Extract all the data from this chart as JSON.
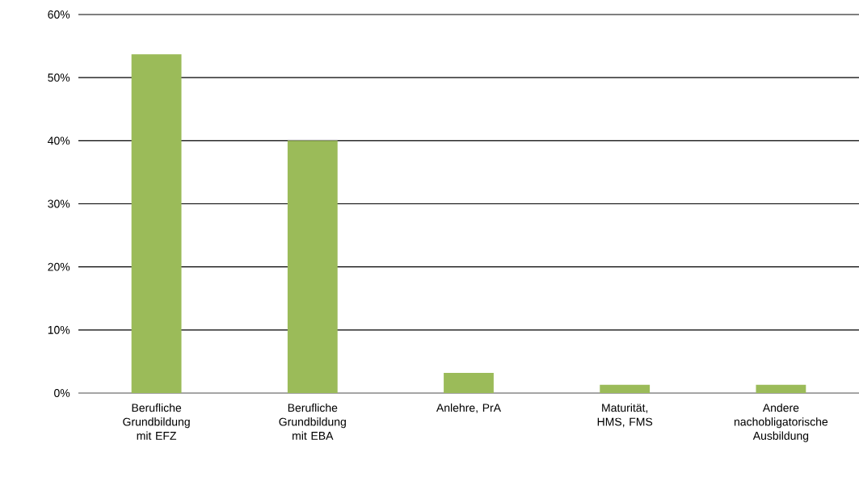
{
  "chart_data": {
    "type": "bar",
    "categories": [
      "Berufliche Grundbildung mit EFZ",
      "Berufliche Grundbildung mit EBA",
      "Anlehre, PrA",
      "Maturität, HMS, FMS",
      "Andere nachobligatorische Ausbildung"
    ],
    "values": [
      53.7,
      40.0,
      3.2,
      1.3,
      1.3
    ],
    "color": "#9bbb59",
    "ylim": [
      0,
      60
    ],
    "yticks": [
      {
        "value": 0,
        "label": "0%"
      },
      {
        "value": 10,
        "label": "10%"
      },
      {
        "value": 20,
        "label": "20%"
      },
      {
        "value": 30,
        "label": "30%"
      },
      {
        "value": 40,
        "label": "40%"
      },
      {
        "value": 50,
        "label": "50%"
      },
      {
        "value": 60,
        "label": "60%"
      }
    ],
    "grid": "y"
  }
}
